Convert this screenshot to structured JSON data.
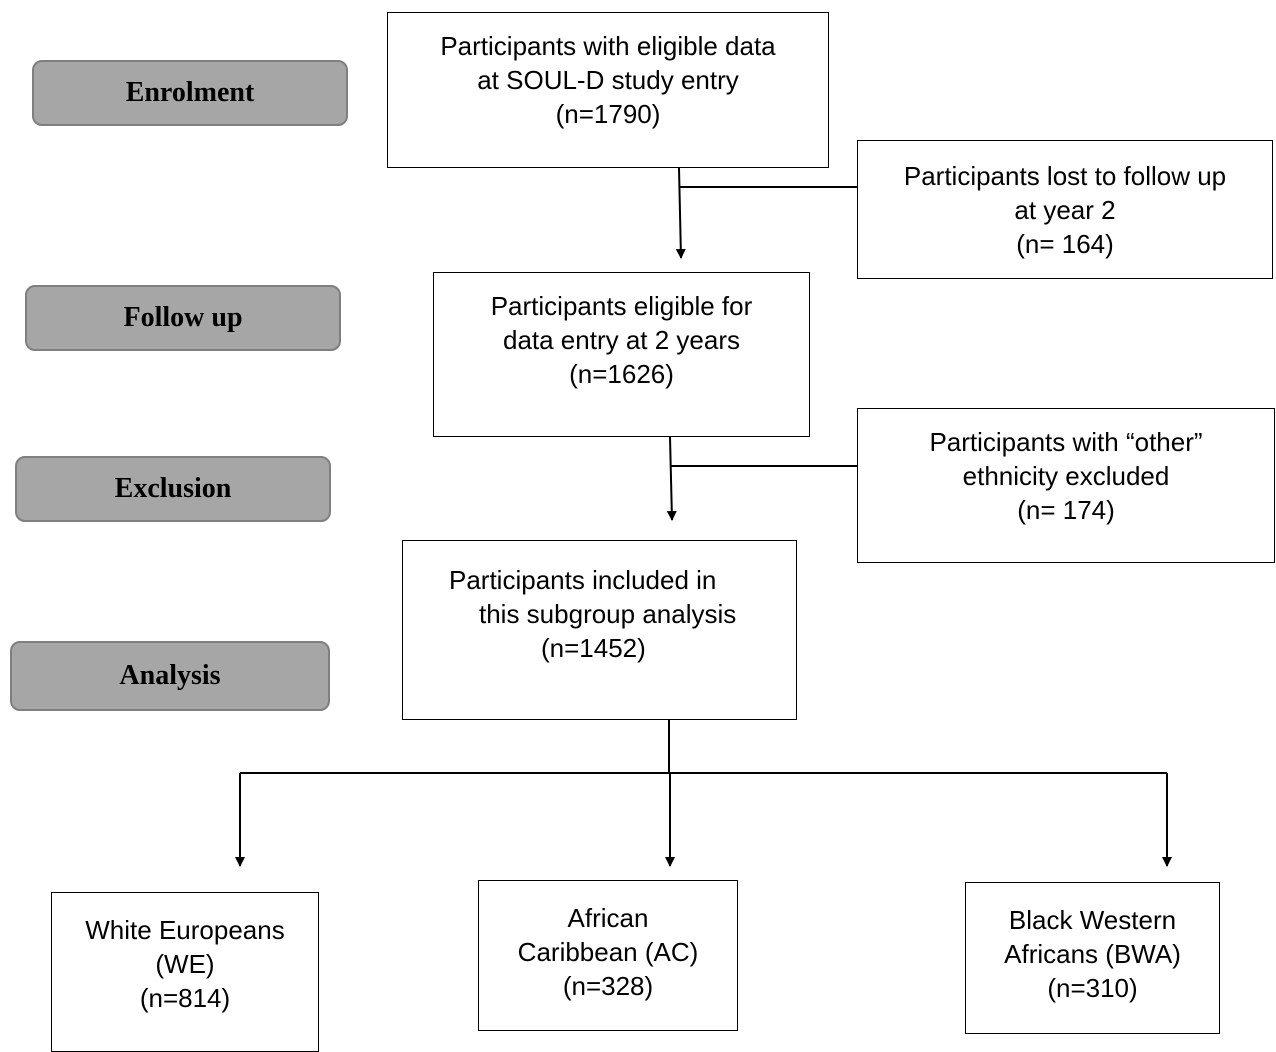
{
  "stages": {
    "enrolment": "Enrolment",
    "follow_up": "Follow up",
    "exclusion": "Exclusion",
    "analysis": "Analysis"
  },
  "boxes": {
    "entry": [
      "Participants with eligible data",
      "at SOUL-D study entry",
      "(n=1790)"
    ],
    "lost": [
      "Participants lost to follow up",
      "at year 2",
      "(n= 164)"
    ],
    "eligible": [
      "Participants eligible for",
      "data entry at 2 years",
      "(n=1626)"
    ],
    "other": [
      "Participants with “other”",
      "ethnicity excluded",
      "(n= 174)"
    ],
    "included": [
      "Participants included in",
      "this subgroup analysis",
      "(n=1452)"
    ],
    "we": [
      "White Europeans",
      "(WE)",
      "(n=814)"
    ],
    "ac": [
      "African",
      "Caribbean (AC)",
      "(n=328)"
    ],
    "bwa": [
      "Black Western",
      "Africans (BWA)",
      "(n=310)"
    ]
  },
  "colors": {
    "stage_fill": "#a6a6a6",
    "stage_border": "#7f7f7f",
    "line": "#000000"
  }
}
